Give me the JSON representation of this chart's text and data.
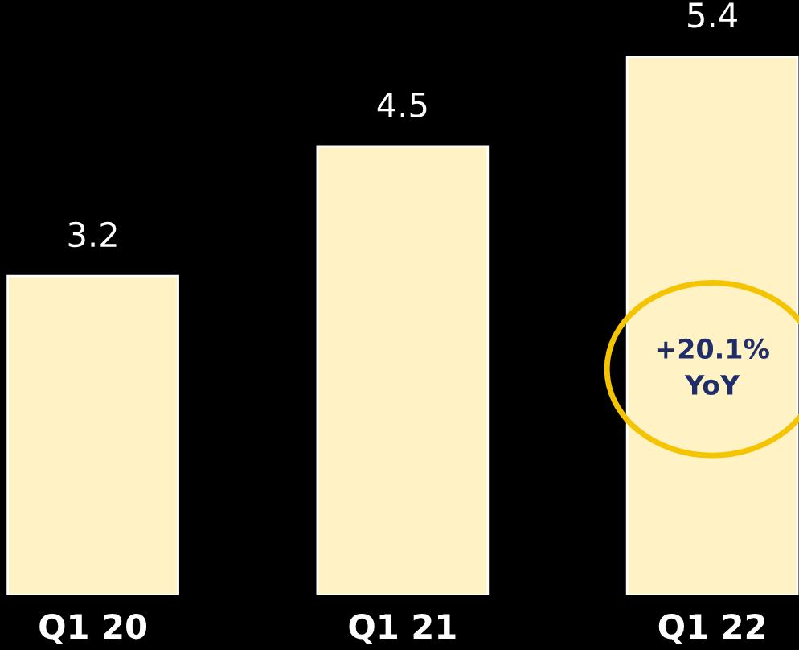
{
  "chart_data": {
    "type": "bar",
    "categories": [
      "Q1 20",
      "Q1 21",
      "Q1 22"
    ],
    "values": [
      3.2,
      4.5,
      5.4
    ],
    "color": "#fff2c4",
    "data_labels": true,
    "annotations": [
      "+20.1%\nYoY"
    ]
  }
}
